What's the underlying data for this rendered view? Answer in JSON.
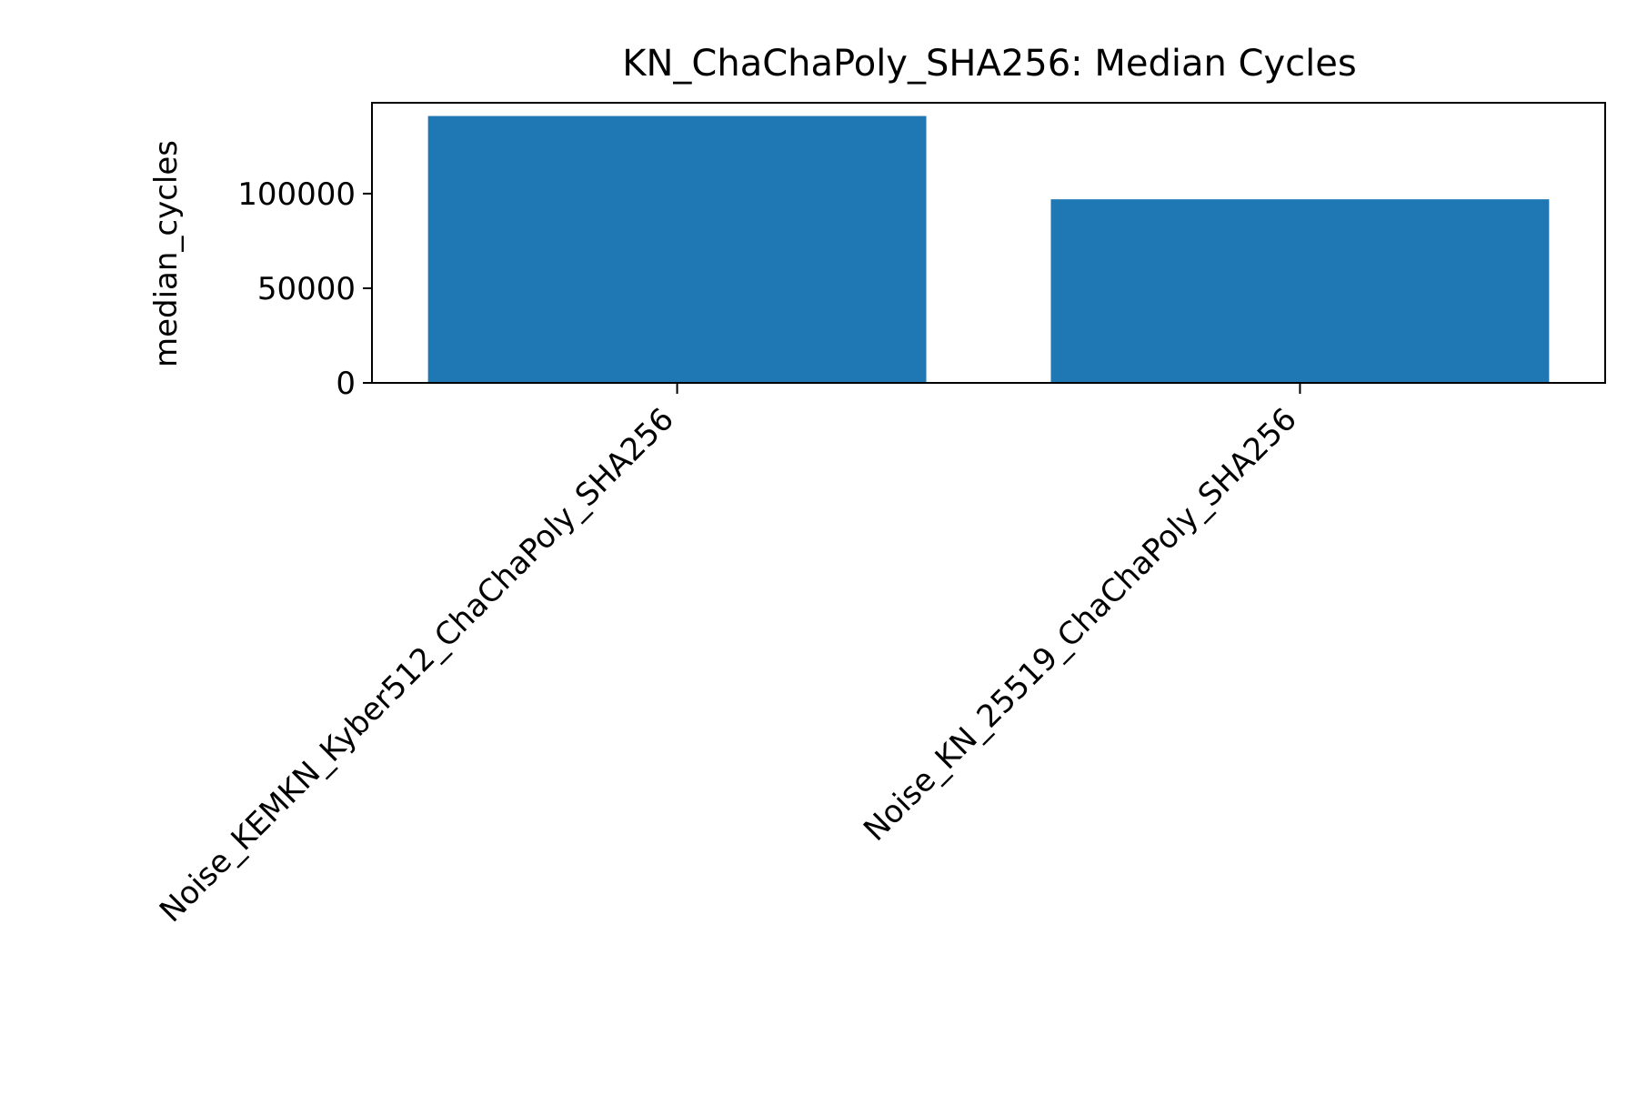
{
  "chart_data": {
    "type": "bar",
    "title": "KN_ChaChaPoly_SHA256: Median Cycles",
    "xlabel": "",
    "ylabel": "median_cycles",
    "categories": [
      "Noise_KEMKN_Kyber512_ChaChaPoly_SHA256",
      "Noise_KN_25519_ChaChaPoly_SHA256"
    ],
    "values": [
      141000,
      97000
    ],
    "ylim": [
      0,
      148000
    ],
    "yticks": [
      0,
      50000,
      100000
    ],
    "ytick_labels": [
      "0",
      "50000",
      "100000"
    ],
    "bar_color": "#1f77b4",
    "grid": false,
    "legend": false
  }
}
